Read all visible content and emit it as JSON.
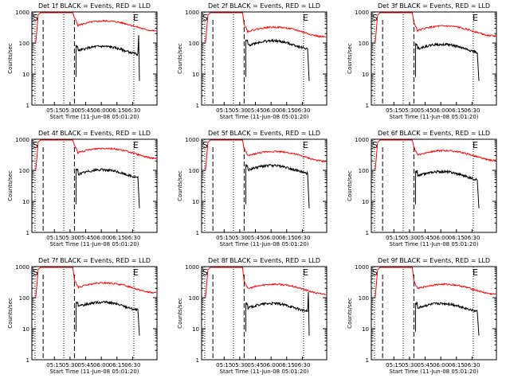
{
  "figure": {
    "ylabel": "Counts/sec",
    "xlabel": "Start Time (11-Jun-08 05:01:20)",
    "yticks": [
      "1",
      "10",
      "100",
      "1000"
    ],
    "xticks": [
      "05:15",
      "05:30",
      "05:45",
      "06:00",
      "06:15",
      "06:30"
    ],
    "black_color": "#000000",
    "red_color": "#ff0000",
    "s_marker": "S",
    "e_marker": "E"
  },
  "chart_data": [
    {
      "type": "line",
      "title": "Det 1f BLACK = Events, RED = LLD",
      "red_level": 380,
      "black_level": 60,
      "black_end_spike": true
    },
    {
      "type": "line",
      "title": "Det 2f BLACK = Events, RED = LLD",
      "red_level": 240,
      "black_level": 90,
      "black_end_spike": false
    },
    {
      "type": "line",
      "title": "Det 3f BLACK = Events, RED = LLD",
      "red_level": 260,
      "black_level": 70,
      "black_end_spike": false
    },
    {
      "type": "line",
      "title": "Det 4f BLACK = Events, RED = LLD",
      "red_level": 380,
      "black_level": 80,
      "black_end_spike": false
    },
    {
      "type": "line",
      "title": "Det 5f BLACK = Events, RED = LLD",
      "red_level": 300,
      "black_level": 110,
      "black_end_spike": false
    },
    {
      "type": "line",
      "title": "Det 6f BLACK = Events, RED = LLD",
      "red_level": 320,
      "black_level": 70,
      "black_end_spike": false
    },
    {
      "type": "line",
      "title": "Det 7f BLACK = Events, RED = LLD",
      "red_level": 220,
      "black_level": 55,
      "black_end_spike": false
    },
    {
      "type": "line",
      "title": "Det 8f BLACK = Events, RED = LLD",
      "red_level": 200,
      "black_level": 50,
      "black_end_spike": true
    },
    {
      "type": "line",
      "title": "Det 9f BLACK = Events, RED = LLD",
      "red_level": 200,
      "black_level": 50,
      "black_end_spike": false
    }
  ]
}
